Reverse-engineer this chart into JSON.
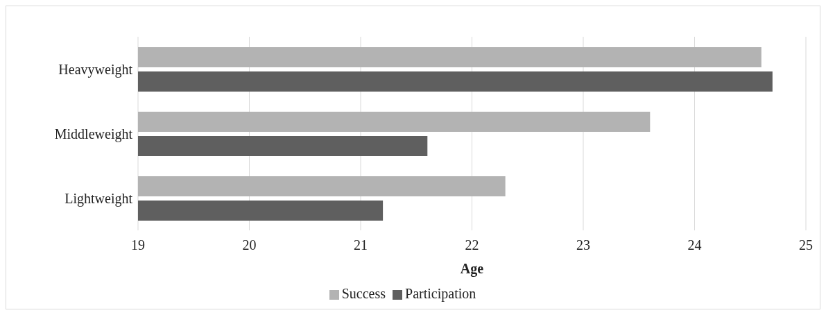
{
  "chart_data": {
    "type": "bar",
    "orientation": "horizontal",
    "xlabel": "Age",
    "categories": [
      "Heavyweight",
      "Middleweight",
      "Lightweight"
    ],
    "series": [
      {
        "name": "Success",
        "color": "#b3b3b3",
        "values": [
          24.6,
          23.6,
          22.3
        ]
      },
      {
        "name": "Participation",
        "color": "#5f5f5f",
        "values": [
          24.7,
          21.6,
          21.2
        ]
      }
    ],
    "xlim": [
      19,
      25
    ],
    "xticks": [
      19,
      20,
      21,
      22,
      23,
      24,
      25
    ],
    "grid": "x",
    "legend": "bottom"
  }
}
